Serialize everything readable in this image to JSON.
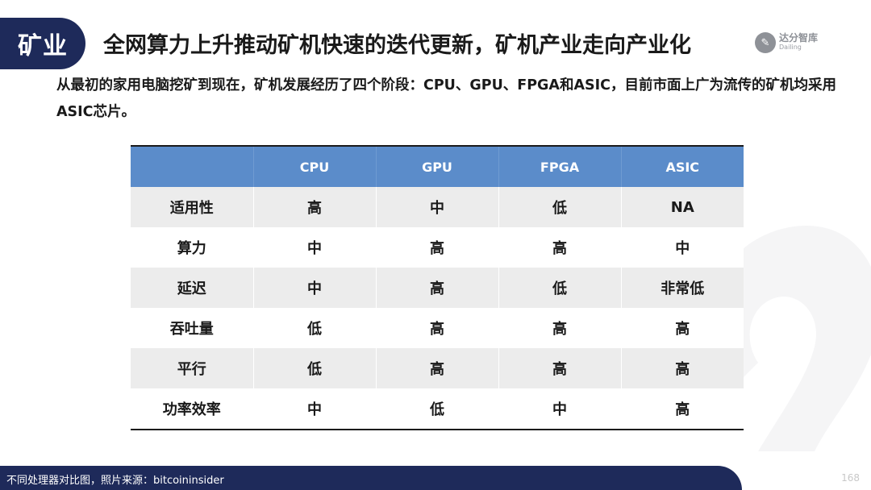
{
  "header": {
    "tag": "矿业",
    "title": "全网算力上升推动矿机快速的迭代更新，矿机产业走向产业化"
  },
  "logo": {
    "cn": "达分智库",
    "en": "Dailing"
  },
  "intro": "从最初的家用电脑挖矿到现在，矿机发展经历了四个阶段：CPU、GPU、FPGA和ASIC，目前市面上广为流传的矿机均采用ASIC芯片。",
  "table": {
    "headers": [
      "",
      "CPU",
      "GPU",
      "FPGA",
      "ASIC"
    ],
    "rows": [
      {
        "label": "适用性",
        "cells": [
          "高",
          "中",
          "低",
          "NA"
        ]
      },
      {
        "label": "算力",
        "cells": [
          "中",
          "高",
          "高",
          "中"
        ]
      },
      {
        "label": "延迟",
        "cells": [
          "中",
          "高",
          "低",
          "非常低"
        ]
      },
      {
        "label": "吞吐量",
        "cells": [
          "低",
          "高",
          "高",
          "高"
        ]
      },
      {
        "label": "平行",
        "cells": [
          "低",
          "高",
          "高",
          "高"
        ]
      },
      {
        "label": "功率效率",
        "cells": [
          "中",
          "低",
          "中",
          "高"
        ]
      }
    ]
  },
  "footer": {
    "caption": "不同处理器对比图，照片来源：bitcoininsider",
    "page_number": "168"
  },
  "colors": {
    "navy": "#1e2a5a",
    "header_blue": "#5b8cca",
    "stripe_gray": "#ececec"
  }
}
